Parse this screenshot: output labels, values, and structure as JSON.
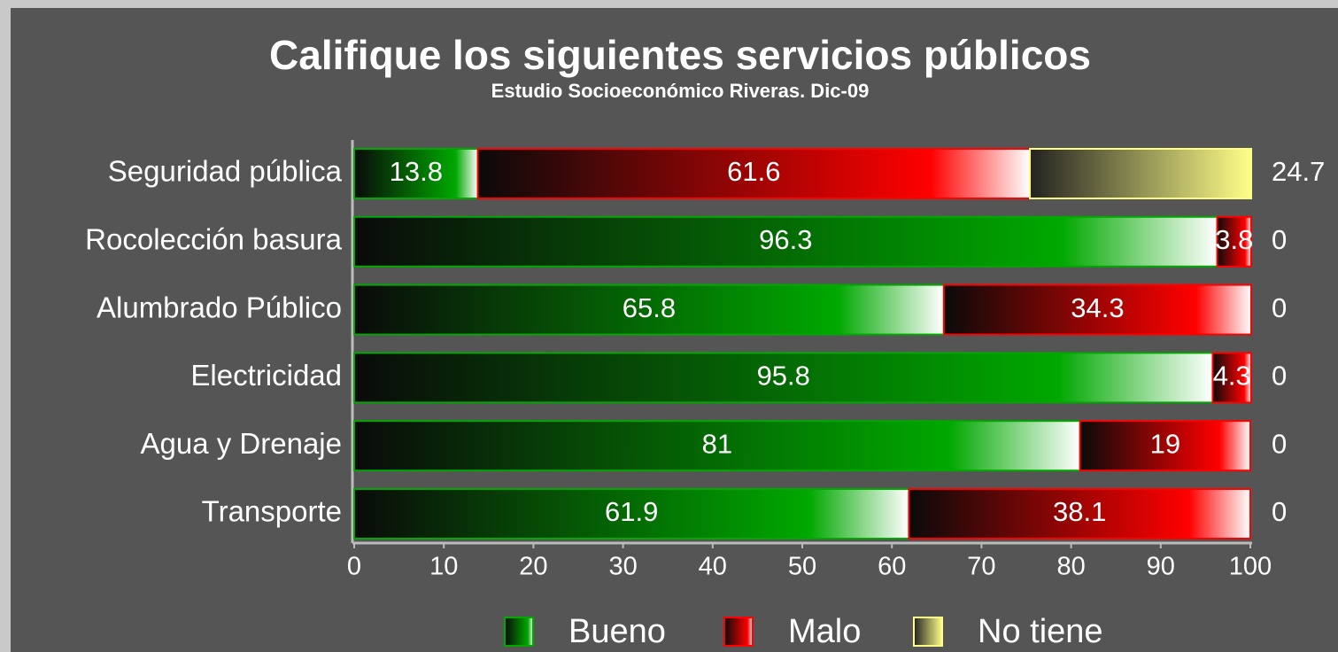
{
  "chart_data": {
    "type": "stacked-bar-horizontal",
    "title": "Califique los siguientes servicios públicos",
    "subtitle": "Estudio Socioeconómico Riveras. Dic-09",
    "categories": [
      "Seguridad pública",
      "Rocolección basura",
      "Alumbrado Público",
      "Electricidad",
      "Agua y Drenaje",
      "Transporte"
    ],
    "series": [
      {
        "name": "Bueno",
        "color": "#00a800",
        "values": [
          13.8,
          96.3,
          65.8,
          95.8,
          81,
          61.9
        ]
      },
      {
        "name": "Malo",
        "color": "#ff0000",
        "values": [
          61.6,
          3.8,
          34.3,
          4.3,
          19,
          38.1
        ]
      },
      {
        "name": "No tiene",
        "color": "#ffff88",
        "values": [
          24.7,
          0,
          0,
          0,
          0,
          0
        ]
      }
    ],
    "xlim": [
      0,
      100
    ],
    "xticks": [
      0,
      10,
      20,
      30,
      40,
      50,
      60,
      70,
      80,
      90,
      100
    ],
    "legend": "bottom",
    "grid": false
  }
}
